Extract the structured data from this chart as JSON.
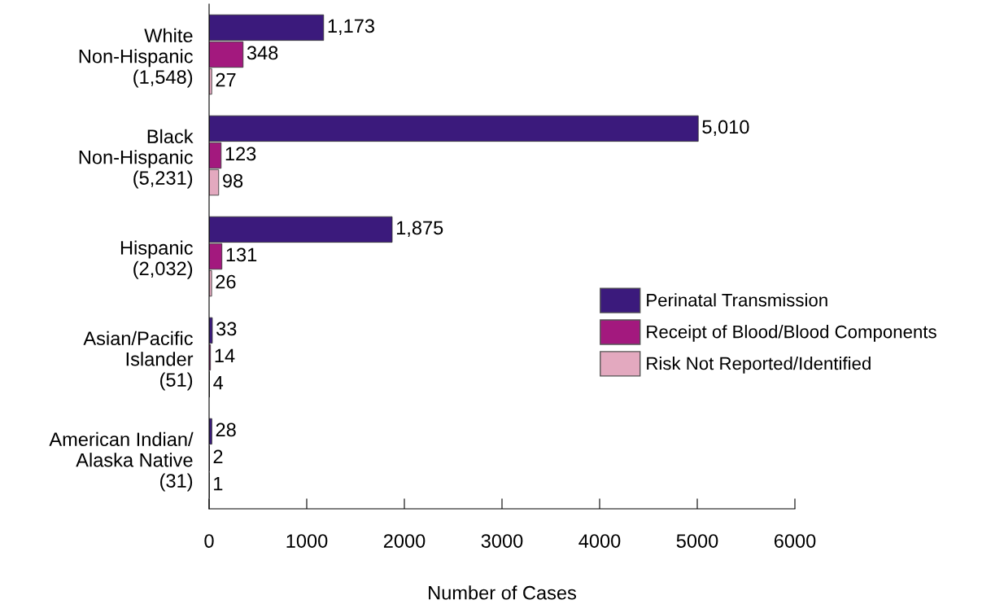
{
  "chart_data": {
    "type": "bar",
    "orientation": "horizontal",
    "categories": [
      "White\nNon-Hispanic\n(1,548)",
      "Black\nNon-Hispanic\n(5,231)",
      "Hispanic\n(2,032)",
      "Asian/Pacific\nIslander\n(51)",
      "American Indian/\nAlaska Native\n(31)"
    ],
    "series": [
      {
        "name": "Perinatal Transmission",
        "color": "#3b1a7c",
        "values": [
          1173,
          5010,
          1875,
          33,
          28
        ],
        "value_labels": [
          "1,173",
          "5,010",
          "1,875",
          "33",
          "28"
        ]
      },
      {
        "name": "Receipt of Blood/Blood Components",
        "color": "#a3197e",
        "values": [
          348,
          123,
          131,
          14,
          2
        ],
        "value_labels": [
          "348",
          "123",
          "131",
          "14",
          "2"
        ]
      },
      {
        "name": "Risk Not Reported/Identified",
        "color": "#e3a9bf",
        "values": [
          27,
          98,
          26,
          4,
          1
        ],
        "value_labels": [
          "27",
          "98",
          "26",
          "4",
          "1"
        ]
      }
    ],
    "xlabel": "Number of Cases",
    "xlim": [
      0,
      6000
    ],
    "xticks": [
      0,
      1000,
      2000,
      3000,
      4000,
      5000,
      6000
    ],
    "legend": "right",
    "grid": false
  }
}
